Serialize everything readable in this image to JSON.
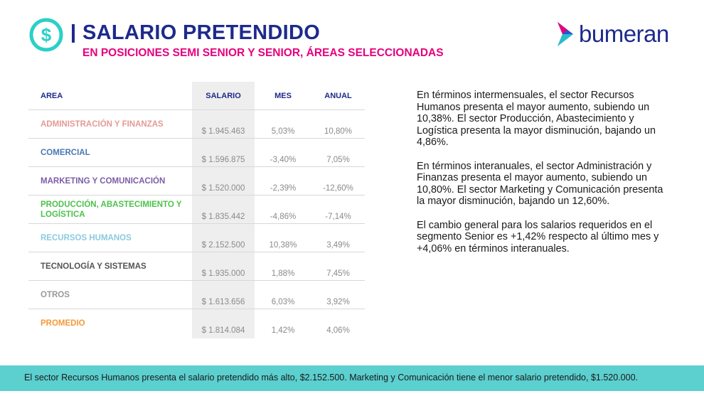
{
  "header": {
    "icon": "dollar-circle-icon",
    "title": "SALARIO PRETENDIDO",
    "subtitle": "EN POSICIONES SEMI SENIOR Y SENIOR, ÁREAS SELECCIONADAS"
  },
  "brand": {
    "name": "bumeran",
    "icon": "chevron-right-logo-icon"
  },
  "table": {
    "headers": {
      "area": "AREA",
      "salario": "SALARIO",
      "mes": "MES",
      "anual": "ANUAL"
    },
    "rows": [
      {
        "area": "ADMINISTRACIÓN Y FINANZAS",
        "salario": "$ 1.945.463",
        "mes": "5,03%",
        "anual": "10,80%",
        "color": "#e49a96"
      },
      {
        "area": "COMERCIAL",
        "salario": "$ 1.596.875",
        "mes": "-3,40%",
        "anual": "7,05%",
        "color": "#4a78b4"
      },
      {
        "area": "MARKETING Y COMUNICACIÓN",
        "salario": "$ 1.520.000",
        "mes": "-2,39%",
        "anual": "-12,60%",
        "color": "#7b5ea7"
      },
      {
        "area": "PRODUCCIÓN, ABASTECIMIENTO Y LOGÍSTICA",
        "salario": "$ 1.835.442",
        "mes": "-4,86%",
        "anual": "-7,14%",
        "color": "#4cc24c"
      },
      {
        "area": "RECURSOS HUMANOS",
        "salario": "$ 2.152.500",
        "mes": "10,38%",
        "anual": "3,49%",
        "color": "#8ccae0"
      },
      {
        "area": "TECNOLOGÍA Y SISTEMAS",
        "salario": "$ 1.935.000",
        "mes": "1,88%",
        "anual": "7,45%",
        "color": "#555555"
      },
      {
        "area": "OTROS",
        "salario": "$ 1.613.656",
        "mes": "6,03%",
        "anual": "3,92%",
        "color": "#999999"
      },
      {
        "area": "PROMEDIO",
        "salario": "$ 1.814.084",
        "mes": "1,42%",
        "anual": "4,06%",
        "color": "#f29a3b"
      }
    ]
  },
  "text": {
    "p1": "En términos intermensuales, el sector Recursos Humanos presenta el mayor aumento, subiendo un 10,38%. El sector Producción, Abastecimiento y Logística presenta la mayor disminución, bajando un 4,86%.",
    "p2": "En términos interanuales, el sector Administración y Finanzas presenta el mayor aumento, subiendo un 10,80%. El sector Marketing y Comunicación presenta la mayor disminución, bajando un 12,60%.",
    "p3": "El cambio general para los salarios requeridos en el segmento Senior es +1,42% respecto al último mes y +4,06% en términos interanuales."
  },
  "footer": {
    "text": "El sector Recursos Humanos presenta el salario pretendido más alto, $2.152.500. Marketing y Comunicación tiene el menor salario pretendido, $1.520.000.",
    "color": "#5ccfcf"
  }
}
